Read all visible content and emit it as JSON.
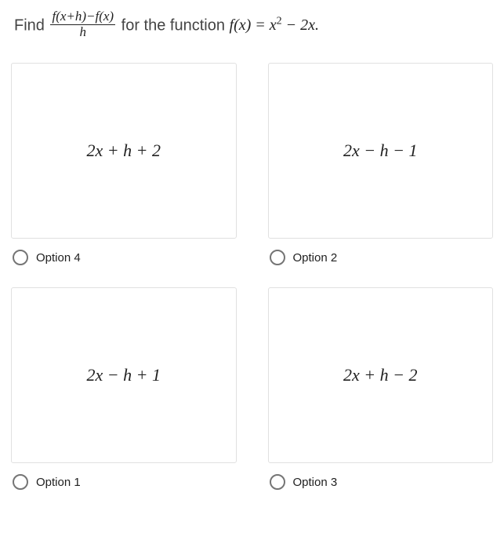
{
  "question": {
    "lead": "Find ",
    "fraction_numerator": "f(x+h)−f(x)",
    "fraction_denominator": "h",
    "mid": " for the function ",
    "function_lhs": "f(x) = ",
    "function_rhs_a": "x",
    "function_rhs_exp": "2",
    "function_rhs_b": " − 2x."
  },
  "options": [
    {
      "expression": "2x + h + 2",
      "label": "Option 4"
    },
    {
      "expression": "2x − h − 1",
      "label": "Option 2"
    },
    {
      "expression": "2x − h + 1",
      "label": "Option 1"
    },
    {
      "expression": "2x + h − 2",
      "label": "Option 3"
    }
  ],
  "style": {
    "card_border": "#e0e0e0",
    "radio_border": "#757575",
    "text_color": "#212121",
    "question_color": "#444444",
    "expr_font": "Times New Roman"
  }
}
